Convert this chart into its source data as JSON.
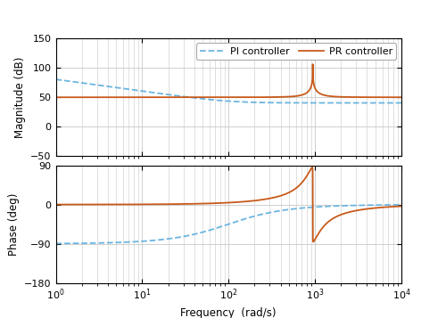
{
  "freq_min": 1,
  "freq_max": 10000,
  "resonant_freq": 942.48,
  "PI_Kp": 100,
  "PI_Ki": 10000,
  "PR_Kp": 300,
  "PR_Kr": 200000,
  "PR_wc": 1,
  "mag_ylim": [
    -50,
    150
  ],
  "mag_yticks": [
    -50,
    0,
    50,
    100,
    150
  ],
  "phase_ylim": [
    -180,
    90
  ],
  "phase_yticks": [
    -180,
    -90,
    0,
    90
  ],
  "xlabel": "Frequency  (rad/s)",
  "ylabel_mag": "Magnitude (dB)",
  "ylabel_phase": "Phase (deg)",
  "pi_color": "#6bb5e0",
  "pr_color": "#c85a1a",
  "pi_label": "PI controller",
  "pr_label": "PR controller",
  "grid_color": "#c8c8c8",
  "background_color": "#ffffff",
  "legend_edgecolor": "#aaaaaa"
}
